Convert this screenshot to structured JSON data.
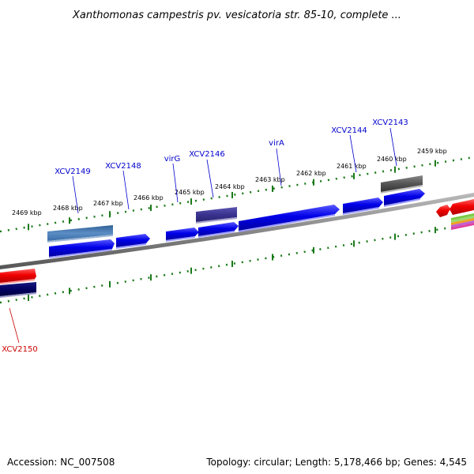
{
  "title": "Xanthomonas campestris pv. vesicatoria str. 85-10, complete ...",
  "scale": {
    "unit_suffix": " kbp",
    "ticks": [
      2469,
      2468,
      2467,
      2466,
      2465,
      2464,
      2463,
      2462,
      2461,
      2460,
      2459
    ]
  },
  "genes": [
    {
      "id": "g_xcv2149",
      "name": "XCV2149",
      "label_color": "#0000cc",
      "color": "#4f82b8",
      "track": "upper"
    },
    {
      "id": "g_xcv2148",
      "name": "XCV2148",
      "label_color": "#0000cc",
      "color": "#0000e0",
      "track": "forward"
    },
    {
      "id": "g_virG",
      "name": "virG",
      "label_color": "#0000cc",
      "color": "#0000e0",
      "track": "forward"
    },
    {
      "id": "g_xcv2146",
      "name": "XCV2146",
      "label_color": "#0000cc",
      "color": "#3a3490",
      "track": "upper"
    },
    {
      "id": "g_virA",
      "name": "virA",
      "label_color": "#0000cc",
      "color": "#0000e0",
      "track": "forward"
    },
    {
      "id": "g_xcv2144",
      "name": "XCV2144",
      "label_color": "#0000cc",
      "color": "#0000e0",
      "track": "forward"
    },
    {
      "id": "g_xcv2143",
      "name": "XCV2143",
      "label_color": "#0000cc",
      "color": "#555555",
      "track": "upper"
    },
    {
      "id": "g_xcv2150",
      "name": "XCV2150",
      "label_color": "#cc0000",
      "color": "#e00000",
      "track": "reverse"
    }
  ],
  "footer": {
    "accession": "Accession: NC_007508",
    "summary": "Topology: circular; Length: 5,178,466 bp; Genes: 4,545"
  }
}
